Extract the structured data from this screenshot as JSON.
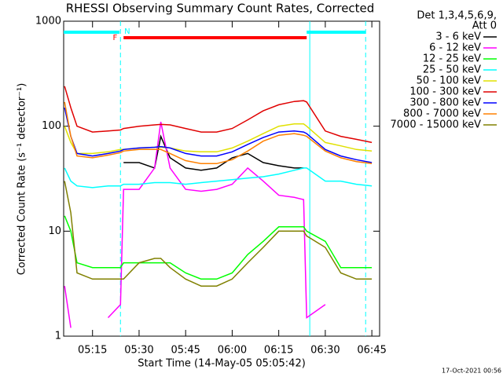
{
  "chart_data": {
    "type": "line",
    "title": "RHESSI Observing Summary Count Rates, Corrected",
    "xlabel": "Start Time (14-May-05 05:05:42)",
    "ylabel": "Corrected Count Rate (s⁻¹ detector⁻¹)",
    "legend_header": [
      "Det 1,3,4,5,6,9,",
      "Att 0"
    ],
    "footer": "17-Oct-2021 00:56",
    "yscale": "log",
    "ylim": [
      1,
      1000
    ],
    "yticks": [
      1,
      10,
      100,
      1000
    ],
    "xlim": [
      "05:05:42",
      "06:47:30"
    ],
    "xticks": [
      "05:15",
      "05:30",
      "05:45",
      "06:00",
      "06:15",
      "06:30",
      "06:45"
    ],
    "legend": "right",
    "x": [
      "05:06",
      "05:08",
      "05:10",
      "05:15",
      "05:20",
      "05:24",
      "05:25",
      "05:30",
      "05:35",
      "05:37",
      "05:40",
      "05:45",
      "05:50",
      "05:55",
      "06:00",
      "06:05",
      "06:10",
      "06:15",
      "06:20",
      "06:23",
      "06:24",
      "06:30",
      "06:35",
      "06:40",
      "06:45"
    ],
    "series": [
      {
        "name": "3 - 6 keV",
        "color": "#000000",
        "values": [
          null,
          null,
          null,
          null,
          null,
          null,
          45,
          45,
          40,
          80,
          50,
          40,
          38,
          40,
          50,
          55,
          45,
          42,
          40,
          40,
          null,
          null,
          null,
          null,
          null
        ]
      },
      {
        "name": "6 - 12 keV",
        "color": "#ff00ff",
        "values": [
          3,
          1.2,
          null,
          null,
          1.5,
          2,
          25,
          25,
          40,
          110,
          40,
          25,
          24,
          25,
          28,
          40,
          30,
          22,
          21,
          20,
          1.5,
          2,
          null,
          null,
          null
        ]
      },
      {
        "name": "12 - 25 keV",
        "color": "#00ff00",
        "values": [
          14,
          10,
          5,
          4.5,
          4.5,
          4.5,
          5,
          5,
          5,
          5,
          5,
          4,
          3.5,
          3.5,
          4,
          6,
          8,
          11,
          11,
          11,
          10,
          8,
          4.5,
          4.5,
          4.5
        ]
      },
      {
        "name": "25 - 50 keV",
        "color": "#00ffff",
        "values": [
          40,
          30,
          27,
          26,
          27,
          27,
          28,
          28,
          29,
          29,
          29,
          28,
          29,
          30,
          31,
          32,
          33,
          35,
          38,
          40,
          40,
          30,
          30,
          28,
          27
        ]
      },
      {
        "name": "50 - 100 keV",
        "color": "#e0e000",
        "values": [
          100,
          70,
          55,
          55,
          57,
          60,
          60,
          62,
          63,
          63,
          62,
          58,
          57,
          57,
          62,
          72,
          85,
          100,
          105,
          105,
          100,
          70,
          65,
          60,
          58
        ]
      },
      {
        "name": "100 - 300 keV",
        "color": "#e00000",
        "values": [
          240,
          150,
          100,
          88,
          90,
          92,
          95,
          100,
          103,
          104,
          103,
          95,
          88,
          88,
          95,
          115,
          140,
          160,
          172,
          175,
          170,
          90,
          80,
          75,
          70
        ]
      },
      {
        "name": "300 - 800 keV",
        "color": "#0000ff",
        "values": [
          150,
          80,
          55,
          52,
          55,
          58,
          60,
          62,
          63,
          64,
          62,
          55,
          52,
          52,
          57,
          67,
          78,
          88,
          90,
          88,
          85,
          60,
          52,
          48,
          45
        ]
      },
      {
        "name": "800 - 7000 keV",
        "color": "#ff8000",
        "values": [
          170,
          80,
          52,
          50,
          53,
          56,
          58,
          60,
          60,
          60,
          55,
          47,
          44,
          44,
          48,
          58,
          72,
          82,
          85,
          82,
          80,
          58,
          50,
          46,
          44
        ]
      },
      {
        "name": "7000 - 15000 keV",
        "color": "#808000",
        "values": [
          30,
          15,
          4,
          3.5,
          3.5,
          3.5,
          3.5,
          5,
          5.5,
          5.5,
          4.5,
          3.5,
          3,
          3,
          3.5,
          5,
          7,
          10,
          10,
          10,
          9,
          7,
          4,
          3.5,
          3.5
        ]
      }
    ],
    "flare": {
      "label": "F",
      "color": "#ff0000",
      "span": [
        "05:25",
        "06:24"
      ]
    },
    "night": {
      "label": "N",
      "color": "#00ffff",
      "spans": [
        [
          "05:05:42",
          "05:23:42"
        ],
        [
          "06:24",
          "06:43"
        ]
      ]
    },
    "dashed_lines": [
      "05:24",
      "06:43"
    ],
    "solid_lines": [
      "06:25"
    ]
  }
}
